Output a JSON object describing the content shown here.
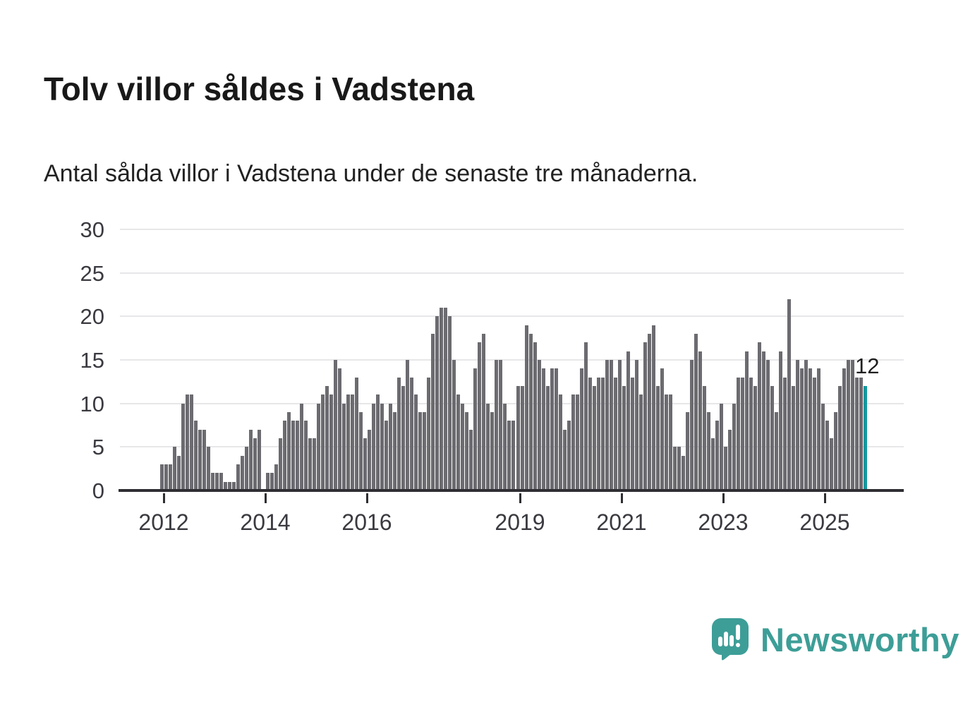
{
  "page": {
    "title": "Tolv villor såldes i Vadstena",
    "subtitle": "Antal sålda villor i Vadstena under de senaste tre månaderna."
  },
  "chart_data": {
    "type": "bar",
    "title": "Tolv villor såldes i Vadstena",
    "subtitle": "Antal sålda villor i Vadstena under de senaste tre månaderna.",
    "description": "Monthly bars of sold houses (rolling three-month count), first bar December 2011, last bar highlighted with value 12",
    "xlabel": "",
    "ylabel": "",
    "ylim": [
      0,
      30
    ],
    "yticks": [
      0,
      5,
      10,
      15,
      20,
      25,
      30
    ],
    "grid": true,
    "legend_position": "none",
    "year_tick_labels": [
      "2012",
      "2014",
      "2016",
      "2019",
      "2021",
      "2023",
      "2025"
    ],
    "year_ticks": [
      2012,
      2014,
      2016,
      2019,
      2021,
      2023,
      2025
    ],
    "start_year": 2011,
    "start_month_index": 11,
    "values": [
      3,
      3,
      3,
      5,
      4,
      10,
      11,
      11,
      8,
      7,
      7,
      5,
      2,
      2,
      2,
      1,
      1,
      1,
      3,
      4,
      5,
      7,
      6,
      7,
      0,
      2,
      2,
      3,
      6,
      8,
      9,
      8,
      8,
      10,
      8,
      6,
      6,
      10,
      11,
      12,
      11,
      15,
      14,
      10,
      11,
      11,
      13,
      9,
      6,
      7,
      10,
      11,
      10,
      8,
      10,
      9,
      13,
      12,
      15,
      13,
      11,
      9,
      9,
      13,
      18,
      20,
      21,
      21,
      20,
      15,
      11,
      10,
      9,
      7,
      14,
      17,
      18,
      10,
      9,
      15,
      15,
      10,
      8,
      8,
      12,
      12,
      19,
      18,
      17,
      15,
      14,
      12,
      14,
      14,
      11,
      7,
      8,
      11,
      11,
      14,
      17,
      13,
      12,
      13,
      13,
      15,
      15,
      13,
      15,
      12,
      16,
      13,
      15,
      11,
      17,
      18,
      19,
      12,
      14,
      11,
      11,
      5,
      5,
      4,
      9,
      15,
      18,
      16,
      12,
      9,
      6,
      8,
      10,
      5,
      7,
      10,
      13,
      13,
      16,
      13,
      12,
      17,
      16,
      15,
      12,
      9,
      16,
      13,
      22,
      12,
      15,
      14,
      15,
      14,
      13,
      14,
      10,
      8,
      6,
      9,
      12,
      14,
      15,
      15,
      13,
      13,
      12
    ],
    "highlight_last": true,
    "annotation_label": "12",
    "colors": {
      "bar": "#6b6b70",
      "highlight": "#12999f",
      "gridline": "#e7e7ea",
      "axis": "#2e2e33",
      "tick_label": "#3a3a40"
    }
  },
  "branding": {
    "wordmark": "Newsworthy",
    "logo_icon": "speech-bubble-chart-icon",
    "teal": "#3d9e97"
  }
}
